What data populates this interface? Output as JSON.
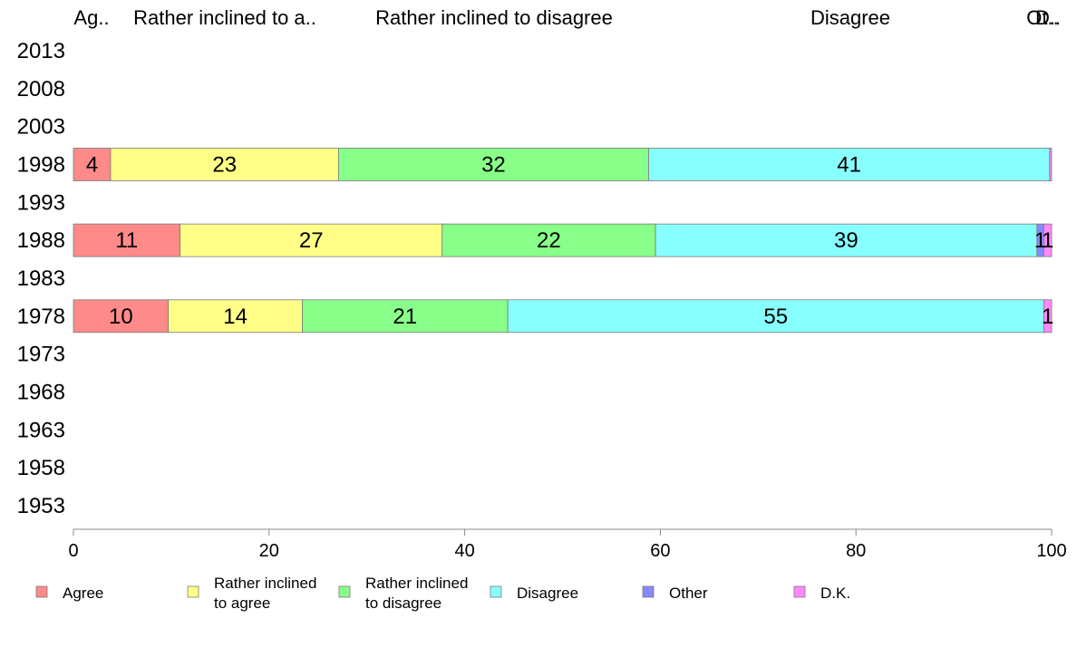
{
  "chart_data": {
    "type": "bar",
    "orientation": "horizontal",
    "stacked": true,
    "xlim": [
      0,
      100
    ],
    "x_ticks": [
      "0",
      "20",
      "40",
      "60",
      "80",
      "100"
    ],
    "y_categories": [
      "2013",
      "2008",
      "2003",
      "1998",
      "1993",
      "1988",
      "1983",
      "1978",
      "1973",
      "1968",
      "1963",
      "1958",
      "1953"
    ],
    "top_labels": [
      "Ag..",
      "Rather inclined to a..",
      "Rather inclined to disagree",
      "Disagree",
      "Ot..",
      "D.."
    ],
    "series": [
      {
        "name": "Agree",
        "color": "#ff8a8a",
        "legend_lines": [
          "Agree"
        ]
      },
      {
        "name": "Rather inclined to agree",
        "color": "#ffff88",
        "legend_lines": [
          "Rather inclined",
          "to agree"
        ]
      },
      {
        "name": "Rather inclined to disagree",
        "color": "#88ff88",
        "legend_lines": [
          "Rather inclined",
          "to disagree"
        ]
      },
      {
        "name": "Disagree",
        "color": "#88ffff",
        "legend_lines": [
          "Disagree"
        ]
      },
      {
        "name": "Other",
        "color": "#8888ff",
        "legend_lines": [
          "Other"
        ]
      },
      {
        "name": "D.K.",
        "color": "#ff88ff",
        "legend_lines": [
          "D.K."
        ]
      }
    ],
    "bars": [
      {
        "year": "1998",
        "values": [
          3.8,
          23.3,
          31.7,
          41.0,
          0,
          0.2
        ],
        "labels": [
          "4",
          "23",
          "32",
          "41",
          "",
          ""
        ]
      },
      {
        "year": "1988",
        "values": [
          10.9,
          26.8,
          21.8,
          39.0,
          0.7,
          0.8
        ],
        "labels": [
          "11",
          "27",
          "22",
          "39",
          "1",
          "1"
        ]
      },
      {
        "year": "1978",
        "values": [
          9.7,
          13.7,
          21.0,
          54.8,
          0,
          0.8
        ],
        "labels": [
          "10",
          "14",
          "21",
          "55",
          "",
          "1"
        ]
      }
    ]
  }
}
